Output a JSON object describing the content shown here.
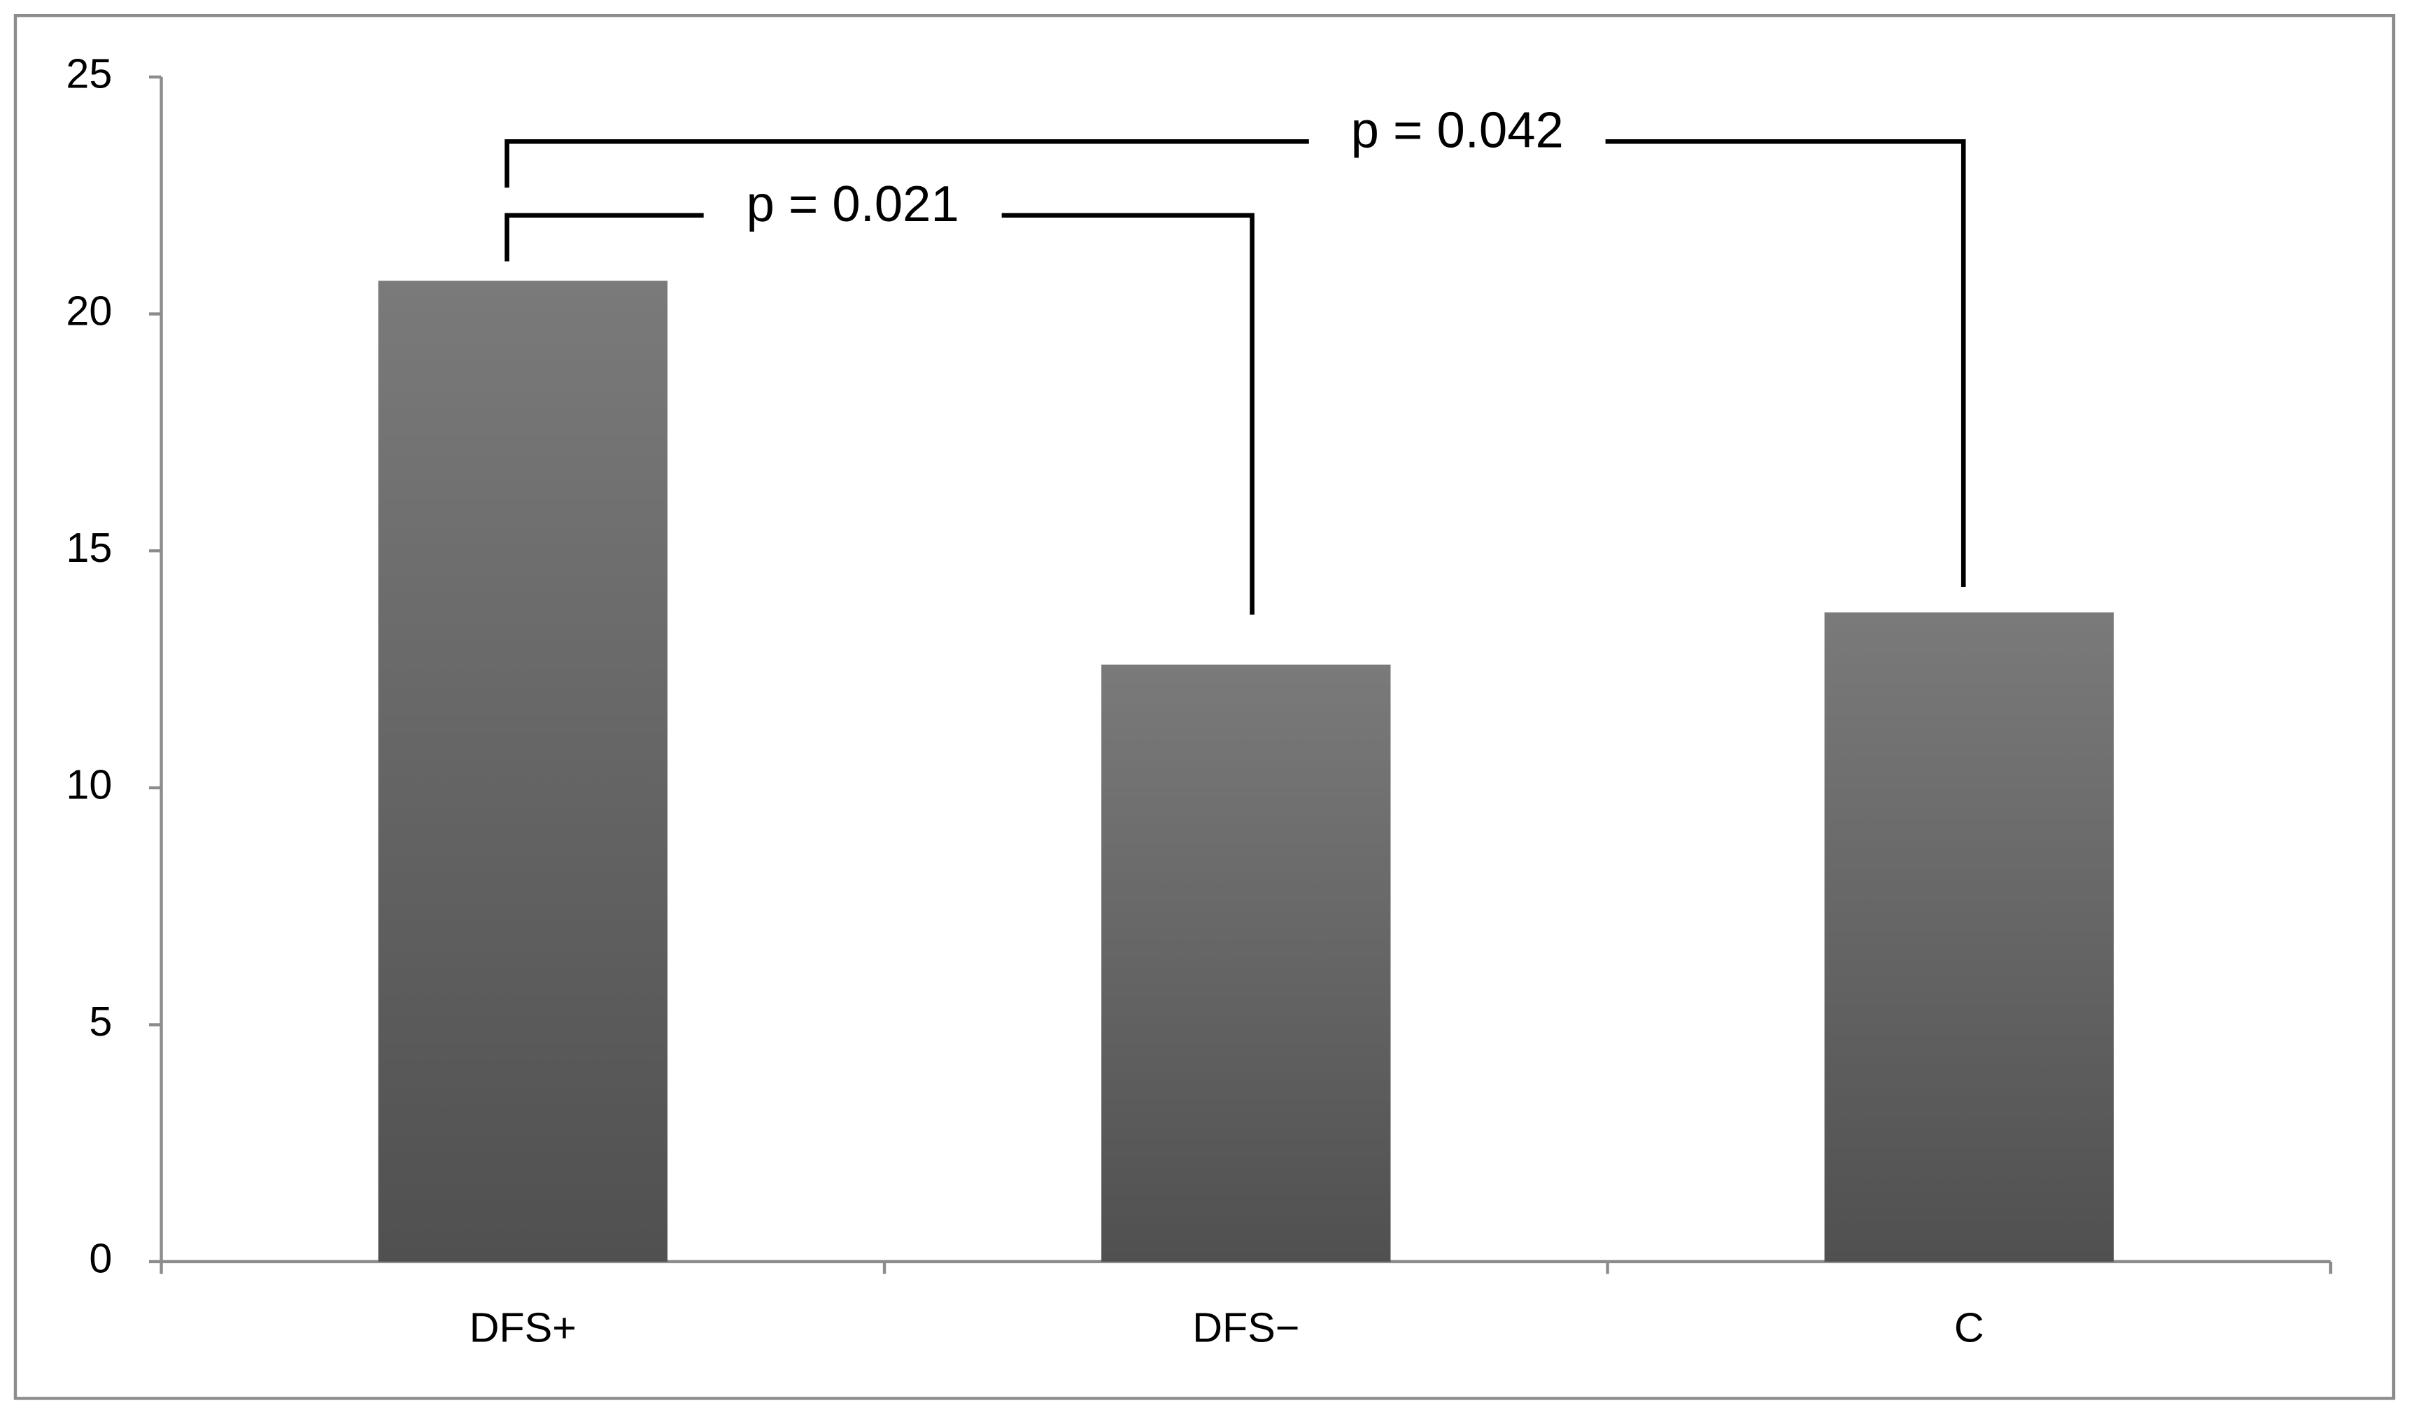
{
  "chart_data": {
    "type": "bar",
    "categories": [
      "DFS+",
      "DFS−",
      "C"
    ],
    "values": [
      20.7,
      12.6,
      13.7
    ],
    "ylim": [
      0,
      25
    ],
    "yticks": [
      0,
      5,
      10,
      15,
      20,
      25
    ],
    "annotations": [
      "p = 0.021",
      "p = 0.042"
    ]
  }
}
